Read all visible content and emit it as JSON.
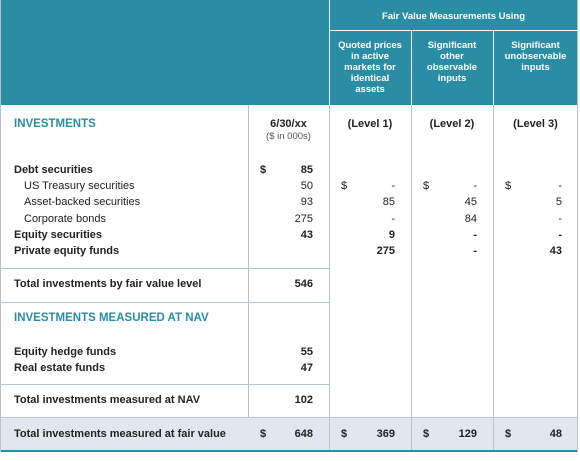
{
  "header": {
    "group_title": "Fair Value Measurements Using",
    "level_columns": [
      "Quoted prices in active markets for identical assets",
      "Significant other observable inputs",
      "Significant unobservable inputs"
    ]
  },
  "investments": {
    "title": "INVESTMENTS",
    "date": "6/30/xx",
    "units": "($ in 000s)",
    "levels": [
      "(Level 1)",
      "(Level 2)",
      "(Level 3)"
    ],
    "groups": [
      {
        "label": "Debt securities",
        "values": [
          {
            "symbol": "$",
            "amount": "85"
          },
          null,
          null,
          null
        ],
        "items": [
          {
            "label": "US Treasury securities",
            "values": [
              "50",
              {
                "symbol": "$",
                "amount": "-"
              },
              {
                "symbol": "$",
                "amount": "-"
              },
              {
                "symbol": "$",
                "amount": "-"
              }
            ]
          },
          {
            "label": "Asset-backed securities",
            "values": [
              "93",
              "85",
              "45",
              "5"
            ]
          },
          {
            "label": "Corporate bonds",
            "values": [
              "275",
              "-",
              "84",
              "-"
            ]
          }
        ]
      },
      {
        "label": "Equity securities",
        "values": [
          "43",
          "9",
          "-",
          "-"
        ],
        "items": []
      },
      {
        "label": "Private equity funds",
        "values": [
          null,
          "275",
          "-",
          "43"
        ],
        "items": []
      }
    ],
    "total": {
      "label": "Total investments by fair value level",
      "values": [
        "546",
        null,
        null,
        null
      ]
    }
  },
  "nav": {
    "title": "INVESTMENTS MEASURED AT NAV",
    "rows": [
      {
        "label": "Equity hedge funds",
        "values": [
          "55"
        ]
      },
      {
        "label": "Real estate funds",
        "values": [
          "47"
        ]
      }
    ],
    "total": {
      "label": "Total investments measured at NAV",
      "values": [
        "102"
      ]
    }
  },
  "grand_total": {
    "label": "Total investments measured at fair value",
    "values": [
      {
        "symbol": "$",
        "amount": "648"
      },
      {
        "symbol": "$",
        "amount": "369"
      },
      {
        "symbol": "$",
        "amount": "129"
      },
      {
        "symbol": "$",
        "amount": "48"
      }
    ]
  }
}
